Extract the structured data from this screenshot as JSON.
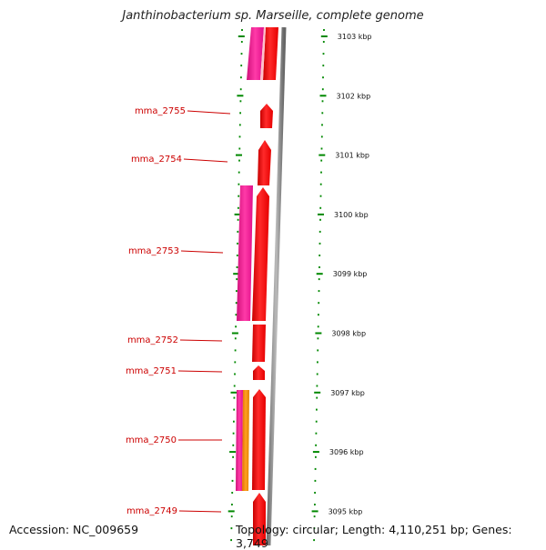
{
  "title": "Janthinobacterium sp. Marseille, complete genome",
  "footer": {
    "accession": "Accession: NC_009659",
    "topology": "Topology: circular; Length: 4,110,251 bp; Genes: 3,749"
  },
  "colors": {
    "cds": "#ff0000",
    "feature_pink": "#ff1493",
    "feature_orange": "#ff8800",
    "label": "#cc0000",
    "ruler": "#008800",
    "backbone": "#888888"
  },
  "kbp_ticks": [
    {
      "kbp": 3103,
      "label": "3103 kbp"
    },
    {
      "kbp": 3102,
      "label": "3102 kbp"
    },
    {
      "kbp": 3101,
      "label": "3101 kbp"
    },
    {
      "kbp": 3100,
      "label": "3100 kbp"
    },
    {
      "kbp": 3099,
      "label": "3099 kbp"
    },
    {
      "kbp": 3098,
      "label": "3098 kbp"
    },
    {
      "kbp": 3097,
      "label": "3097 kbp"
    },
    {
      "kbp": 3096,
      "label": "3096 kbp"
    },
    {
      "kbp": 3095,
      "label": "3095 kbp"
    }
  ],
  "genes": [
    {
      "name": "mma_2755"
    },
    {
      "name": "mma_2754"
    },
    {
      "name": "mma_2753"
    },
    {
      "name": "mma_2752"
    },
    {
      "name": "mma_2751"
    },
    {
      "name": "mma_2750"
    },
    {
      "name": "mma_2749"
    }
  ]
}
